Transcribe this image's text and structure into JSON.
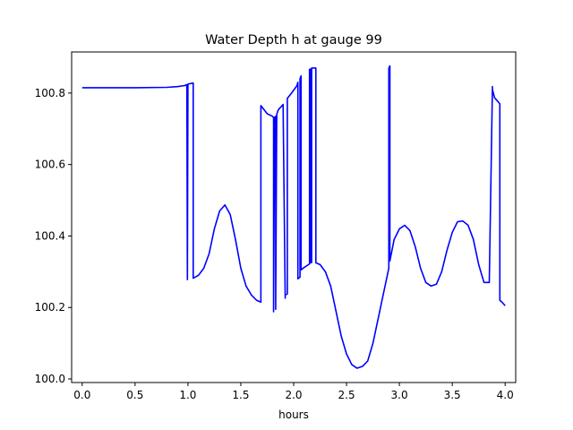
{
  "chart_data": {
    "type": "line",
    "title": "Water Depth h at gauge 99",
    "xlabel": "hours",
    "ylabel": "",
    "xlim": [
      -0.1,
      4.1
    ],
    "ylim": [
      99.99,
      100.915
    ],
    "x_ticks": [
      0.0,
      0.5,
      1.0,
      1.5,
      2.0,
      2.5,
      3.0,
      3.5,
      4.0
    ],
    "x_tick_labels": [
      "0.0",
      "0.5",
      "1.0",
      "1.5",
      "2.0",
      "2.5",
      "3.0",
      "3.5",
      "4.0"
    ],
    "y_ticks": [
      100.0,
      100.2,
      100.4,
      100.6,
      100.8
    ],
    "y_tick_labels": [
      "100.0",
      "100.2",
      "100.4",
      "100.6",
      "100.8"
    ],
    "grid": false,
    "series": [
      {
        "color": "#0000ff",
        "x": [
          0.0,
          0.5,
          0.8,
          0.9,
          0.97,
          0.975,
          0.98,
          0.99,
          0.995,
          1.0,
          1.05,
          1.05,
          1.1,
          1.15,
          1.2,
          1.25,
          1.3,
          1.35,
          1.4,
          1.45,
          1.5,
          1.55,
          1.6,
          1.65,
          1.69,
          1.69,
          1.75,
          1.8,
          1.81,
          1.81,
          1.82,
          1.83,
          1.83,
          1.84,
          1.85,
          1.85,
          1.86,
          1.9,
          1.92,
          1.92,
          1.94,
          1.94,
          1.98,
          2.03,
          2.04,
          2.04,
          2.06,
          2.06,
          2.07,
          2.07,
          2.09,
          2.14,
          2.15,
          2.15,
          2.16,
          2.16,
          2.17,
          2.17,
          2.21,
          2.21,
          2.25,
          2.3,
          2.35,
          2.4,
          2.45,
          2.5,
          2.55,
          2.6,
          2.65,
          2.7,
          2.75,
          2.8,
          2.85,
          2.9,
          2.9,
          2.91,
          2.91,
          2.95,
          3.0,
          3.05,
          3.1,
          3.15,
          3.2,
          3.25,
          3.3,
          3.35,
          3.4,
          3.45,
          3.5,
          3.55,
          3.6,
          3.65,
          3.7,
          3.75,
          3.8,
          3.85,
          3.88,
          3.88,
          3.9,
          3.95,
          3.95,
          3.97,
          4.0
        ],
        "y": [
          100.815,
          100.815,
          100.816,
          100.818,
          100.821,
          100.821,
          100.823,
          100.823,
          100.278,
          100.825,
          100.828,
          100.282,
          100.29,
          100.31,
          100.35,
          100.42,
          100.47,
          100.487,
          100.46,
          100.39,
          100.31,
          100.26,
          100.235,
          100.22,
          100.215,
          100.765,
          100.742,
          100.735,
          100.731,
          100.188,
          100.732,
          100.735,
          100.195,
          100.74,
          100.75,
          100.75,
          100.755,
          100.768,
          100.226,
          100.235,
          100.238,
          100.785,
          100.8,
          100.82,
          100.83,
          100.28,
          100.285,
          100.84,
          100.848,
          100.305,
          100.31,
          100.32,
          100.322,
          100.866,
          100.867,
          100.325,
          100.326,
          100.87,
          100.87,
          100.325,
          100.32,
          100.3,
          100.26,
          100.19,
          100.12,
          100.07,
          100.04,
          100.03,
          100.035,
          100.05,
          100.1,
          100.17,
          100.24,
          100.31,
          100.87,
          100.876,
          100.33,
          100.39,
          100.42,
          100.43,
          100.415,
          100.37,
          100.31,
          100.27,
          100.26,
          100.265,
          100.3,
          100.36,
          100.41,
          100.44,
          100.442,
          100.43,
          100.39,
          100.32,
          100.27,
          100.27,
          100.818,
          100.81,
          100.787,
          100.77,
          100.22,
          100.215,
          100.205
        ]
      }
    ]
  }
}
